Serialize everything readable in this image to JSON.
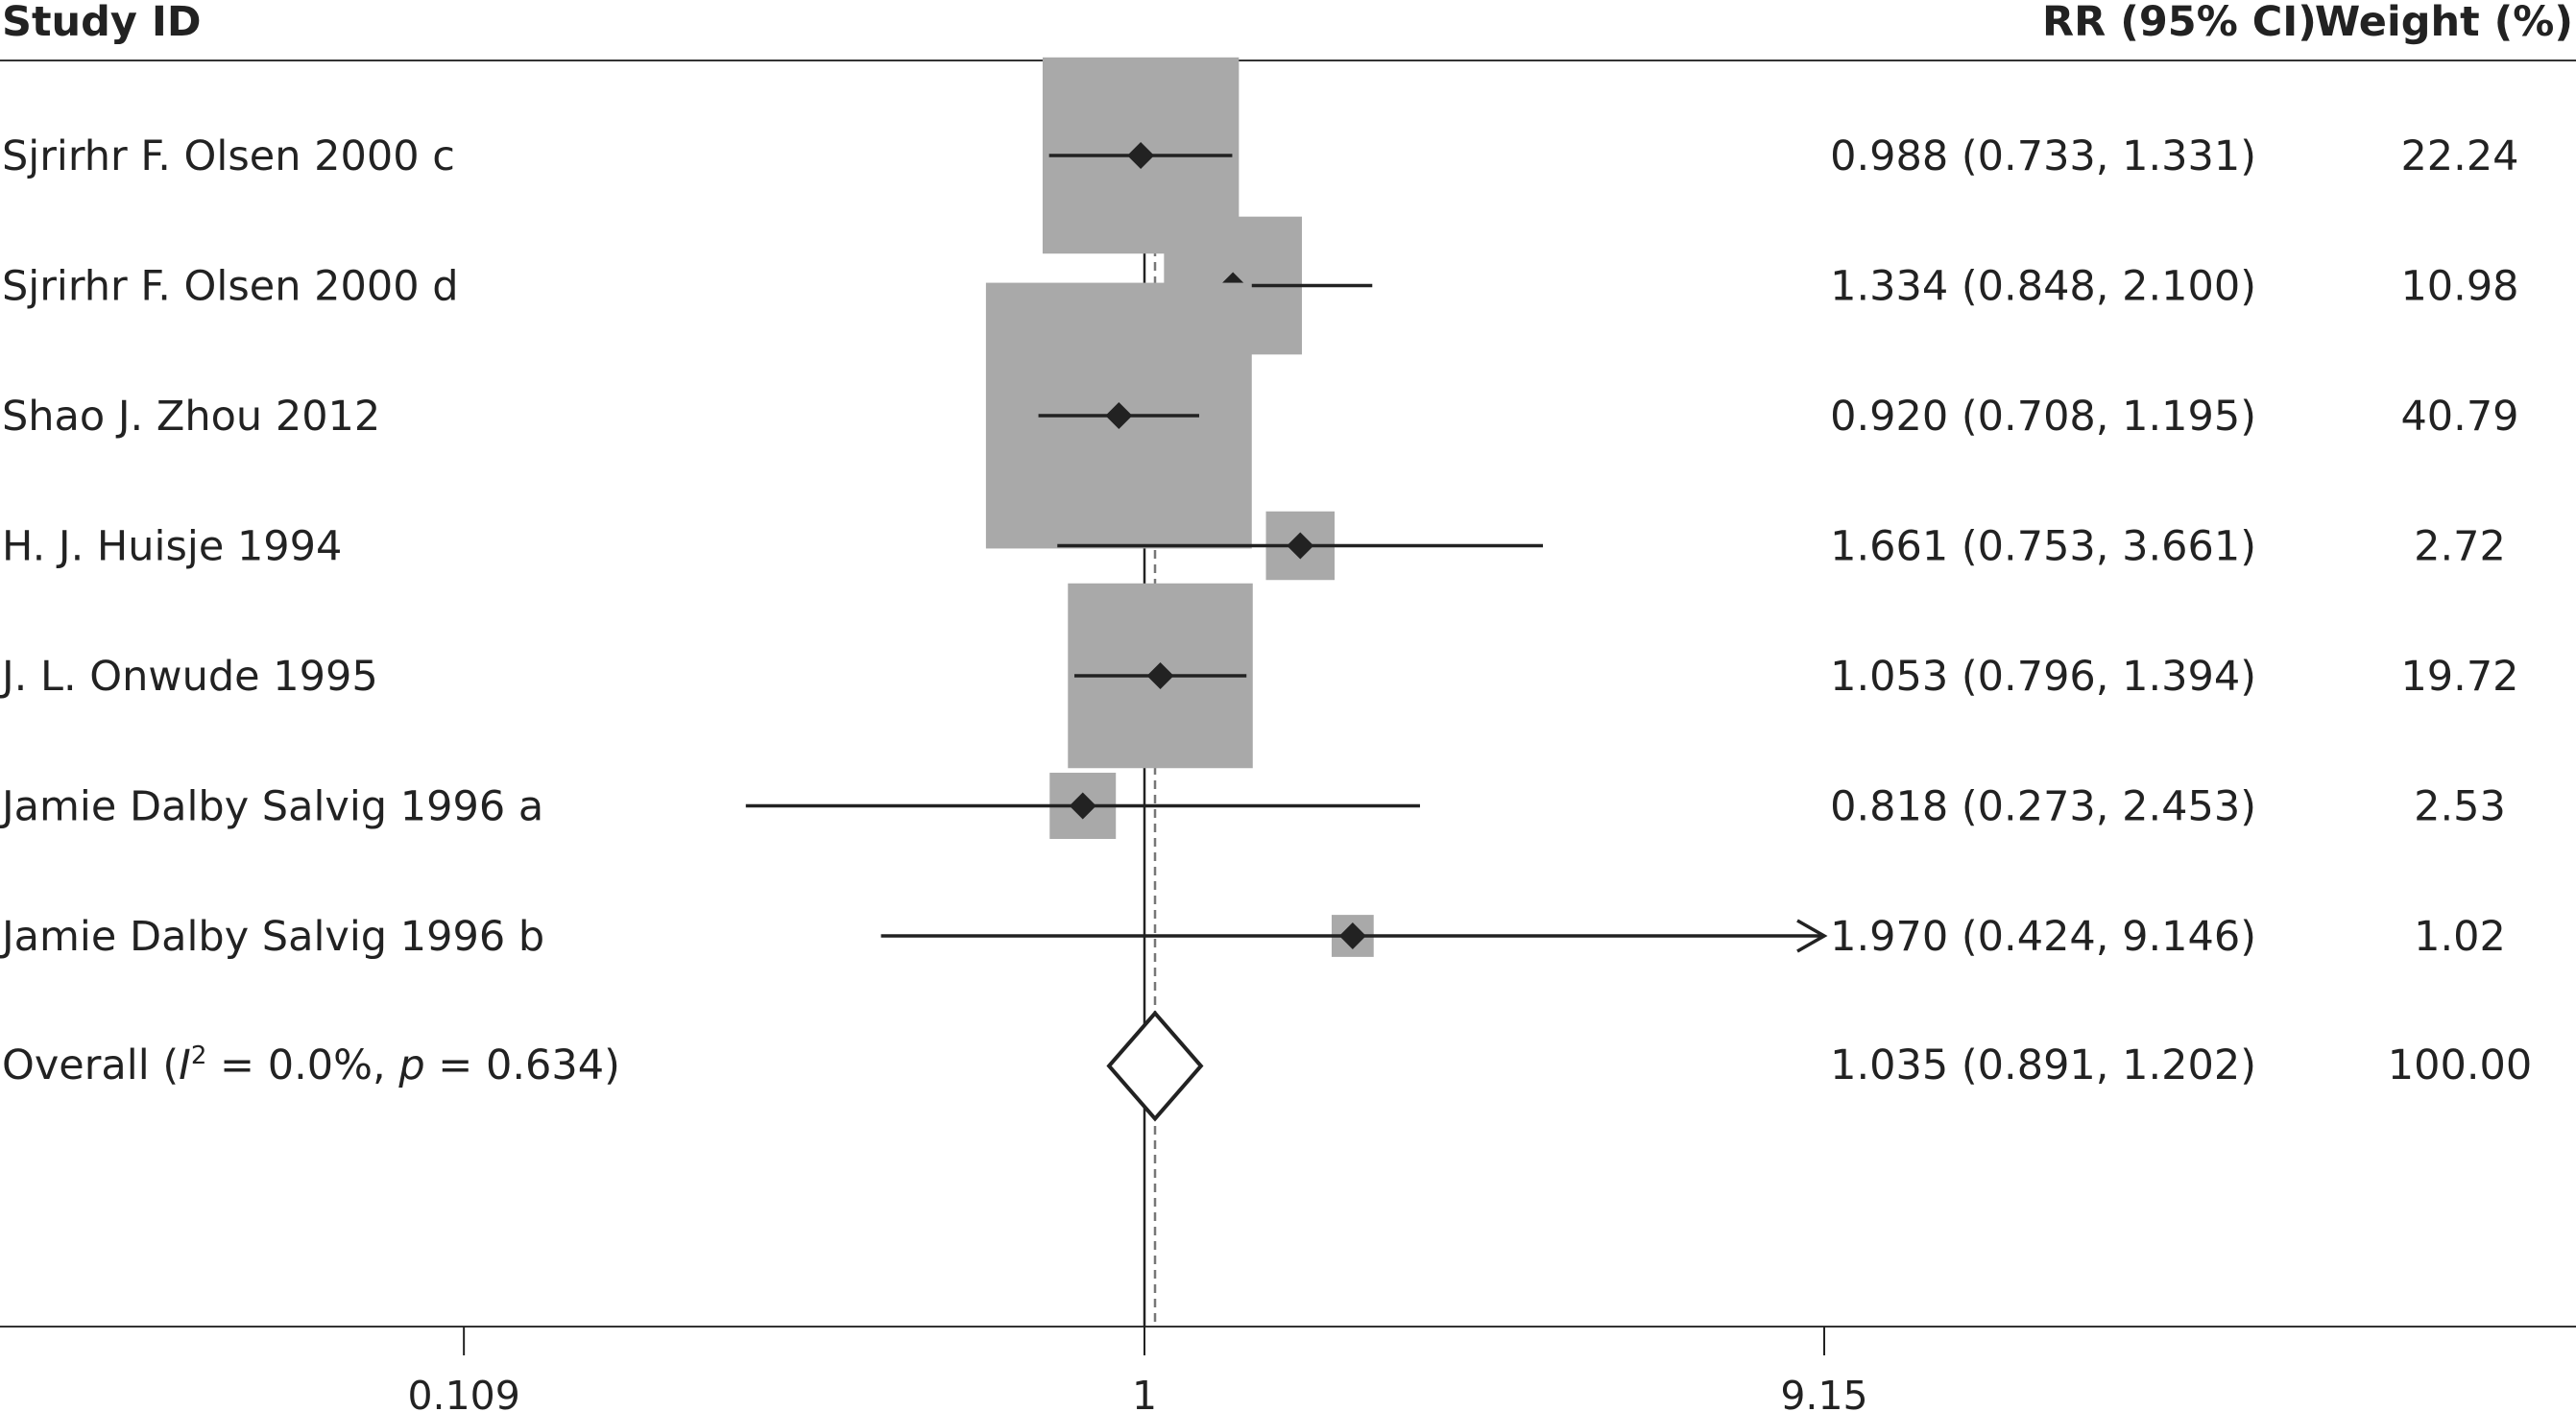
{
  "chart_data": {
    "type": "forest",
    "headers": {
      "study": "Study ID",
      "effect": "RR (95% CI)",
      "weight": "Weight (%)"
    },
    "x_scale": "log",
    "x_ticks": [
      {
        "value": 0.109,
        "label": "0.109"
      },
      {
        "value": 1,
        "label": "1"
      },
      {
        "value": 9.15,
        "label": "9.15"
      }
    ],
    "reference_line": 1,
    "colors": {
      "box": "#a9a9a9",
      "marker": "#222222",
      "line": "#222222",
      "dashed": "#777777"
    },
    "studies": [
      {
        "label": "Sjrirhr F. Olsen 2000 c",
        "rr": 0.988,
        "lower": 0.733,
        "upper": 1.331,
        "ci_text": "0.988 (0.733, 1.331)",
        "weight": 22.24,
        "weight_text": "22.24"
      },
      {
        "label": "Sjrirhr F. Olsen 2000 d",
        "rr": 1.334,
        "lower": 0.848,
        "upper": 2.1,
        "ci_text": "1.334 (0.848, 2.100)",
        "weight": 10.98,
        "weight_text": "10.98"
      },
      {
        "label": "Shao J. Zhou 2012",
        "rr": 0.92,
        "lower": 0.708,
        "upper": 1.195,
        "ci_text": "0.920 (0.708, 1.195)",
        "weight": 40.79,
        "weight_text": "40.79"
      },
      {
        "label": "H. J. Huisje 1994",
        "rr": 1.661,
        "lower": 0.753,
        "upper": 3.661,
        "ci_text": "1.661 (0.753, 3.661)",
        "weight": 2.72,
        "weight_text": "2.72"
      },
      {
        "label": "J. L. Onwude 1995",
        "rr": 1.053,
        "lower": 0.796,
        "upper": 1.394,
        "ci_text": "1.053 (0.796, 1.394)",
        "weight": 19.72,
        "weight_text": "19.72"
      },
      {
        "label": "Jamie Dalby Salvig 1996 a",
        "rr": 0.818,
        "lower": 0.273,
        "upper": 2.453,
        "ci_text": "0.818 (0.273, 2.453)",
        "weight": 2.53,
        "weight_text": "2.53"
      },
      {
        "label": "Jamie Dalby Salvig 1996 b",
        "rr": 1.97,
        "lower": 0.424,
        "upper": 9.146,
        "ci_text": "1.970 (0.424, 9.146)",
        "weight": 1.02,
        "weight_text": "1.02",
        "arrow_right": true
      }
    ],
    "overall": {
      "label_prefix": "Overall (",
      "i2_symbol": "I",
      "i2_sup": "2",
      "i2_text": " = 0.0%, ",
      "p_symbol": "p",
      "p_text": " = 0.634)",
      "rr": 1.035,
      "lower": 0.891,
      "upper": 1.202,
      "ci_text": "1.035 (0.891, 1.202)",
      "weight_text": "100.00"
    }
  }
}
